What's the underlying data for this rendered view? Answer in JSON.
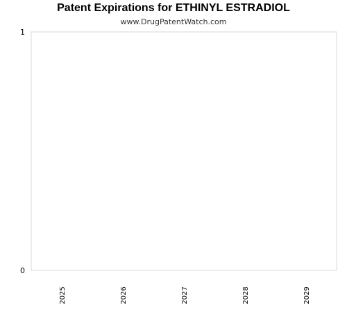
{
  "chart_data": {
    "type": "bar",
    "title": "Patent Expirations for ETHINYL ESTRADIOL",
    "subtitle": "www.DrugPatentWatch.com",
    "xlabel": "",
    "ylabel": "",
    "categories": [
      "2025",
      "2026",
      "2027",
      "2028",
      "2029"
    ],
    "values": [
      0,
      0,
      0,
      0,
      0
    ],
    "ylim": [
      0,
      1
    ],
    "y_ticks": [
      "0",
      "1"
    ],
    "grid": false,
    "legend": "none",
    "colors": {
      "axis": "#d9d9d9",
      "text": "#000000",
      "bar": "#4a90d9"
    }
  }
}
